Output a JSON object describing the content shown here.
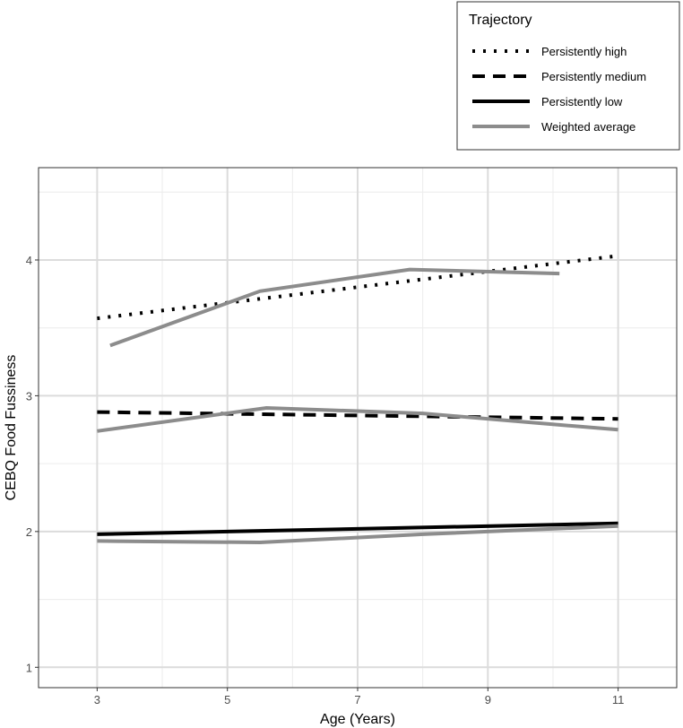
{
  "chart_data": {
    "type": "line",
    "xlabel": "Age (Years)",
    "ylabel": "CEBQ Food Fussiness",
    "xlim": [
      2.1,
      11.9
    ],
    "ylim": [
      0.85,
      4.68
    ],
    "x_ticks": [
      3,
      5,
      7,
      9,
      11
    ],
    "y_ticks": [
      1,
      2,
      3,
      4
    ],
    "grid": true,
    "legend": {
      "title": "Trajectory",
      "placement": "top-right, outside plot",
      "entries": [
        "Persistently high",
        "Persistently medium",
        "Persistently low",
        "Weighted average"
      ]
    },
    "series": [
      {
        "name": "Persistently high",
        "style": "dotted",
        "color": "#000000",
        "points": [
          [
            3,
            3.57
          ],
          [
            11,
            4.03
          ]
        ]
      },
      {
        "name": "Persistently medium",
        "style": "dashed",
        "color": "#000000",
        "points": [
          [
            3,
            2.88
          ],
          [
            11,
            2.83
          ]
        ]
      },
      {
        "name": "Persistently low",
        "style": "solid",
        "color": "#000000",
        "points": [
          [
            3,
            1.98
          ],
          [
            11,
            2.06
          ]
        ]
      },
      {
        "name": "Weighted average",
        "style": "solid",
        "color": "#8c8c8c",
        "points": [
          [
            3.2,
            3.37
          ],
          [
            5.5,
            3.77
          ],
          [
            7.8,
            3.93
          ],
          [
            10.1,
            3.9
          ]
        ]
      },
      {
        "name": "Weighted average",
        "style": "solid",
        "color": "#8c8c8c",
        "points": [
          [
            3,
            2.74
          ],
          [
            5.6,
            2.91
          ],
          [
            8,
            2.87
          ],
          [
            11,
            2.75
          ]
        ]
      },
      {
        "name": "Weighted average",
        "style": "solid",
        "color": "#8c8c8c",
        "points": [
          [
            3,
            1.93
          ],
          [
            5.5,
            1.92
          ],
          [
            8,
            1.98
          ],
          [
            11,
            2.04
          ]
        ]
      }
    ]
  }
}
